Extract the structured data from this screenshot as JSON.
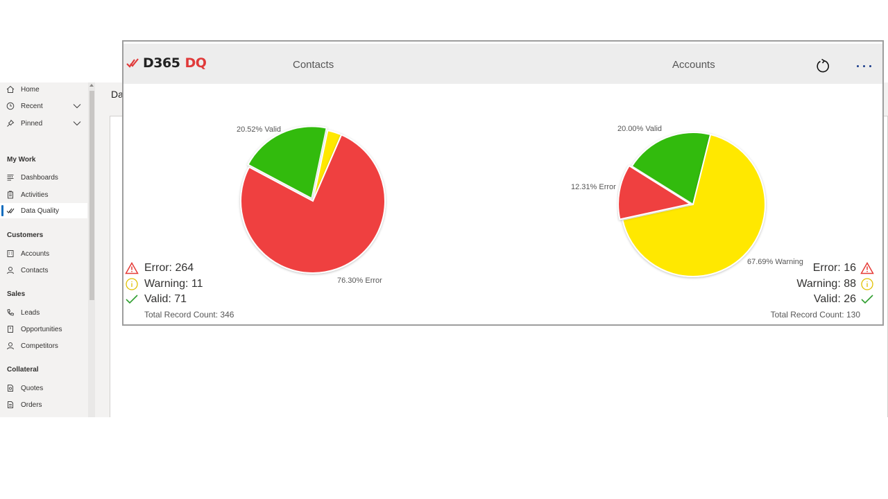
{
  "sidebar": {
    "top_items": [
      {
        "label": "Home",
        "icon": "home-icon"
      },
      {
        "label": "Recent",
        "icon": "clock-icon"
      },
      {
        "label": "Pinned",
        "icon": "pin-icon"
      }
    ],
    "sections": [
      {
        "title": "My Work",
        "items": [
          {
            "label": "Dashboards",
            "icon": "dashboard-icon"
          },
          {
            "label": "Activities",
            "icon": "clipboard-icon"
          },
          {
            "label": "Data Quality",
            "icon": "double-check-icon",
            "active": true
          }
        ]
      },
      {
        "title": "Customers",
        "items": [
          {
            "label": "Accounts",
            "icon": "building-icon"
          },
          {
            "label": "Contacts",
            "icon": "person-icon"
          }
        ]
      },
      {
        "title": "Sales",
        "items": [
          {
            "label": "Leads",
            "icon": "phone-icon"
          },
          {
            "label": "Opportunities",
            "icon": "document-icon"
          },
          {
            "label": "Competitors",
            "icon": "person-icon"
          }
        ]
      },
      {
        "title": "Collateral",
        "items": [
          {
            "label": "Quotes",
            "icon": "quote-icon"
          },
          {
            "label": "Orders",
            "icon": "order-icon"
          }
        ]
      }
    ]
  },
  "header": {
    "title": "Data Quality"
  },
  "widget": {
    "brand_main": "D365",
    "brand_accent": "DQ",
    "tabs": [
      "Contacts",
      "Accounts"
    ],
    "colors": {
      "error": "#ef4040",
      "warning": "#ffe800",
      "valid": "#33bb0e",
      "brand_red": "#e03a3a"
    }
  },
  "contacts": {
    "slice_labels": {
      "valid": "20.52% Valid",
      "error": "76.30% Error"
    },
    "legend": {
      "error": "Error: 264",
      "warning": "Warning: 11",
      "valid": "Valid: 71",
      "total": "Total Record Count: 346"
    }
  },
  "accounts": {
    "slice_labels": {
      "valid": "20.00% Valid",
      "error": "12.31% Error",
      "warning": "67.69% Warning"
    },
    "legend": {
      "error": "Error: 16",
      "warning": "Warning: 88",
      "valid": "Valid: 26",
      "total": "Total Record Count: 130"
    }
  },
  "chart_data": [
    {
      "type": "pie",
      "title": "Contacts",
      "categories": [
        "Error",
        "Warning",
        "Valid"
      ],
      "values": [
        264,
        11,
        71
      ],
      "percentages": [
        76.3,
        3.18,
        20.52
      ],
      "colors": [
        "#ef4040",
        "#ffe800",
        "#33bb0e"
      ]
    },
    {
      "type": "pie",
      "title": "Accounts",
      "categories": [
        "Error",
        "Warning",
        "Valid"
      ],
      "values": [
        16,
        88,
        26
      ],
      "percentages": [
        12.31,
        67.69,
        20.0
      ],
      "colors": [
        "#ef4040",
        "#ffe800",
        "#33bb0e"
      ]
    }
  ]
}
